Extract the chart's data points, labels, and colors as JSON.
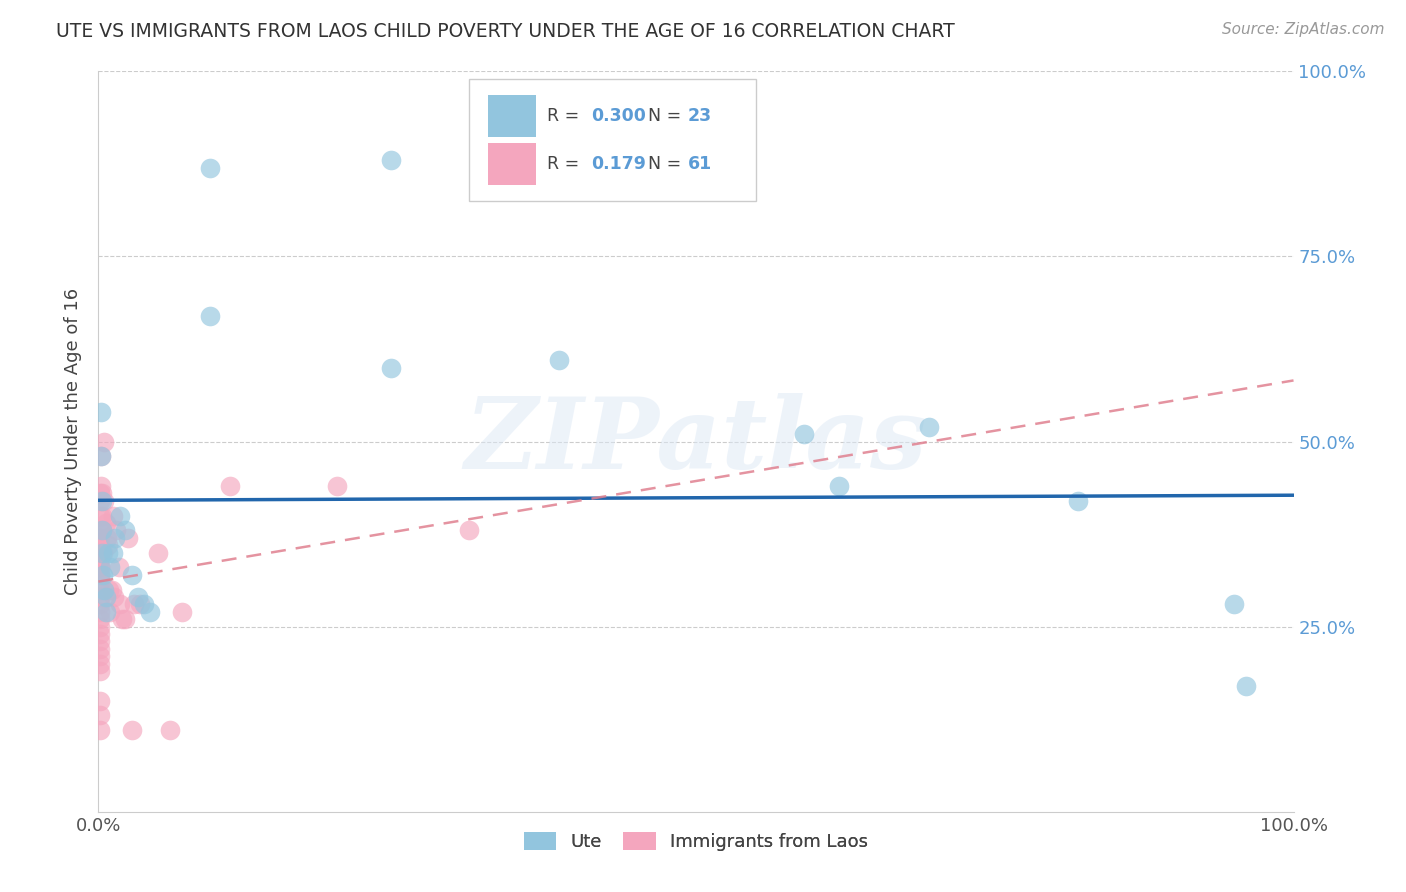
{
  "title": "UTE VS IMMIGRANTS FROM LAOS CHILD POVERTY UNDER THE AGE OF 16 CORRELATION CHART",
  "source": "Source: ZipAtlas.com",
  "ylabel": "Child Poverty Under the Age of 16",
  "watermark": "ZIPatlas",
  "ute_color": "#92c5de",
  "laos_color": "#f4a6be",
  "ute_line_color": "#2166ac",
  "laos_line_color": "#d6a0b0",
  "value_color": "#5b9bd5",
  "label_color": "#555555",
  "background_color": "#ffffff",
  "grid_color": "#cccccc",
  "ute_points": [
    [
      0.002,
      0.54
    ],
    [
      0.002,
      0.48
    ],
    [
      0.003,
      0.42
    ],
    [
      0.003,
      0.38
    ],
    [
      0.003,
      0.35
    ],
    [
      0.004,
      0.32
    ],
    [
      0.005,
      0.3
    ],
    [
      0.006,
      0.29
    ],
    [
      0.006,
      0.27
    ],
    [
      0.008,
      0.35
    ],
    [
      0.01,
      0.33
    ],
    [
      0.012,
      0.35
    ],
    [
      0.014,
      0.37
    ],
    [
      0.018,
      0.4
    ],
    [
      0.022,
      0.38
    ],
    [
      0.028,
      0.32
    ],
    [
      0.033,
      0.29
    ],
    [
      0.038,
      0.28
    ],
    [
      0.043,
      0.27
    ],
    [
      0.093,
      0.87
    ],
    [
      0.093,
      0.67
    ],
    [
      0.245,
      0.88
    ],
    [
      0.245,
      0.6
    ],
    [
      0.385,
      0.61
    ],
    [
      0.59,
      0.51
    ],
    [
      0.62,
      0.44
    ],
    [
      0.695,
      0.52
    ],
    [
      0.82,
      0.42
    ],
    [
      0.95,
      0.28
    ],
    [
      0.96,
      0.17
    ]
  ],
  "laos_points": [
    [
      0.001,
      0.43
    ],
    [
      0.001,
      0.42
    ],
    [
      0.001,
      0.4
    ],
    [
      0.001,
      0.38
    ],
    [
      0.001,
      0.37
    ],
    [
      0.001,
      0.36
    ],
    [
      0.001,
      0.35
    ],
    [
      0.001,
      0.35
    ],
    [
      0.001,
      0.34
    ],
    [
      0.001,
      0.33
    ],
    [
      0.001,
      0.33
    ],
    [
      0.001,
      0.32
    ],
    [
      0.001,
      0.32
    ],
    [
      0.001,
      0.31
    ],
    [
      0.001,
      0.3
    ],
    [
      0.001,
      0.29
    ],
    [
      0.001,
      0.28
    ],
    [
      0.001,
      0.27
    ],
    [
      0.001,
      0.26
    ],
    [
      0.001,
      0.25
    ],
    [
      0.001,
      0.24
    ],
    [
      0.001,
      0.23
    ],
    [
      0.001,
      0.22
    ],
    [
      0.001,
      0.21
    ],
    [
      0.001,
      0.2
    ],
    [
      0.001,
      0.19
    ],
    [
      0.001,
      0.15
    ],
    [
      0.001,
      0.13
    ],
    [
      0.001,
      0.11
    ],
    [
      0.002,
      0.48
    ],
    [
      0.002,
      0.44
    ],
    [
      0.003,
      0.43
    ],
    [
      0.003,
      0.4
    ],
    [
      0.003,
      0.38
    ],
    [
      0.004,
      0.35
    ],
    [
      0.005,
      0.5
    ],
    [
      0.005,
      0.42
    ],
    [
      0.006,
      0.39
    ],
    [
      0.007,
      0.37
    ],
    [
      0.008,
      0.36
    ],
    [
      0.009,
      0.3
    ],
    [
      0.01,
      0.27
    ],
    [
      0.011,
      0.3
    ],
    [
      0.012,
      0.4
    ],
    [
      0.013,
      0.29
    ],
    [
      0.015,
      0.38
    ],
    [
      0.017,
      0.33
    ],
    [
      0.018,
      0.28
    ],
    [
      0.02,
      0.26
    ],
    [
      0.022,
      0.26
    ],
    [
      0.025,
      0.37
    ],
    [
      0.028,
      0.11
    ],
    [
      0.03,
      0.28
    ],
    [
      0.035,
      0.28
    ],
    [
      0.05,
      0.35
    ],
    [
      0.06,
      0.11
    ],
    [
      0.07,
      0.27
    ],
    [
      0.11,
      0.44
    ],
    [
      0.2,
      0.44
    ],
    [
      0.31,
      0.38
    ]
  ],
  "xlim": [
    0.0,
    1.0
  ],
  "ylim": [
    0.0,
    1.0
  ],
  "xticks": [
    0.0,
    0.25,
    0.5,
    0.75,
    1.0
  ],
  "yticks": [
    0.25,
    0.5,
    0.75,
    1.0
  ],
  "xticklabels_show": [
    "0.0%",
    "100.0%"
  ],
  "yticklabels": [
    "25.0%",
    "50.0%",
    "75.0%",
    "100.0%"
  ]
}
